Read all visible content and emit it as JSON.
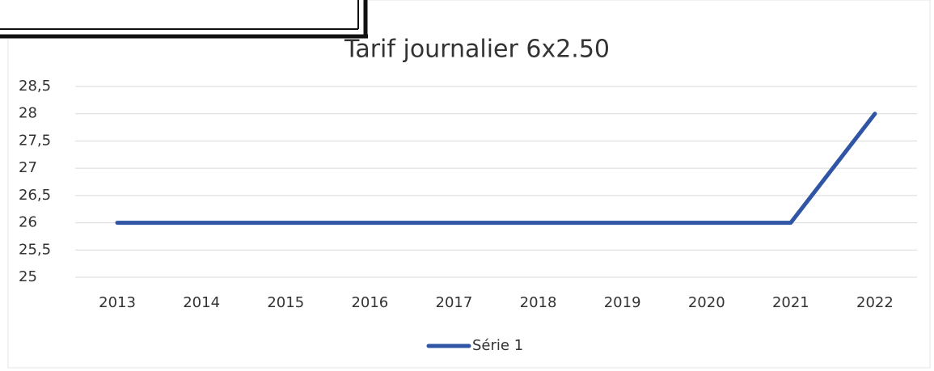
{
  "chart_data": {
    "type": "line",
    "title": "Tarif journalier 6x2.50",
    "categories": [
      "2013",
      "2014",
      "2015",
      "2016",
      "2017",
      "2018",
      "2019",
      "2020",
      "2021",
      "2022"
    ],
    "series": [
      {
        "name": "Série 1",
        "color": "#2f55a4",
        "values": [
          26,
          26,
          26,
          26,
          26,
          26,
          26,
          26,
          26,
          28
        ]
      }
    ],
    "ylim": [
      25,
      28.5
    ],
    "yticks": [
      25,
      {
        "value": 25.5,
        "label": "25,5"
      },
      26,
      {
        "value": 26.5,
        "label": "26,5"
      },
      27,
      {
        "value": 27.5,
        "label": "27,5"
      },
      28,
      {
        "value": 28.5,
        "label": "28,5"
      }
    ],
    "grid": true,
    "legend": "bottom"
  }
}
